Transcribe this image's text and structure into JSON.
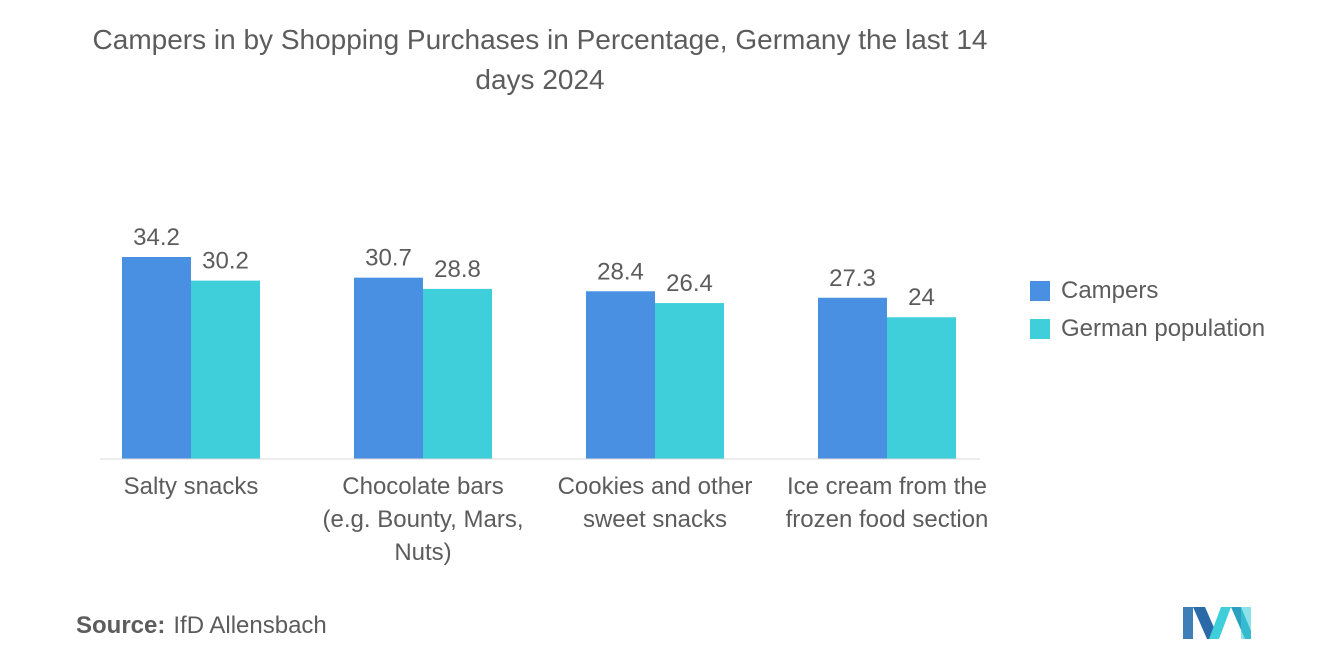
{
  "chart_data": {
    "type": "bar",
    "title": "Campers in by Shopping Purchases in Percentage, Germany the last 14 days 2024",
    "categories": [
      [
        "Salty snacks"
      ],
      [
        "Chocolate bars",
        "(e.g. Bounty, Mars,",
        "Nuts)"
      ],
      [
        "Cookies and other",
        "sweet snacks"
      ],
      [
        "Ice cream from the",
        "frozen food section"
      ]
    ],
    "series": [
      {
        "name": "Campers",
        "values": [
          34.2,
          30.7,
          28.4,
          27.3
        ],
        "color": "#4a90e2"
      },
      {
        "name": "German population",
        "values": [
          30.2,
          28.8,
          26.4,
          24
        ],
        "color": "#3ecfdb"
      }
    ],
    "ylim": [
      0,
      34.2
    ],
    "legend_position": "right",
    "grid": false
  },
  "source": {
    "label": "Source:",
    "text": "IfD Allensbach"
  },
  "colors": {
    "text": "#5c5c5c",
    "baseline": "#d9d9d9"
  }
}
